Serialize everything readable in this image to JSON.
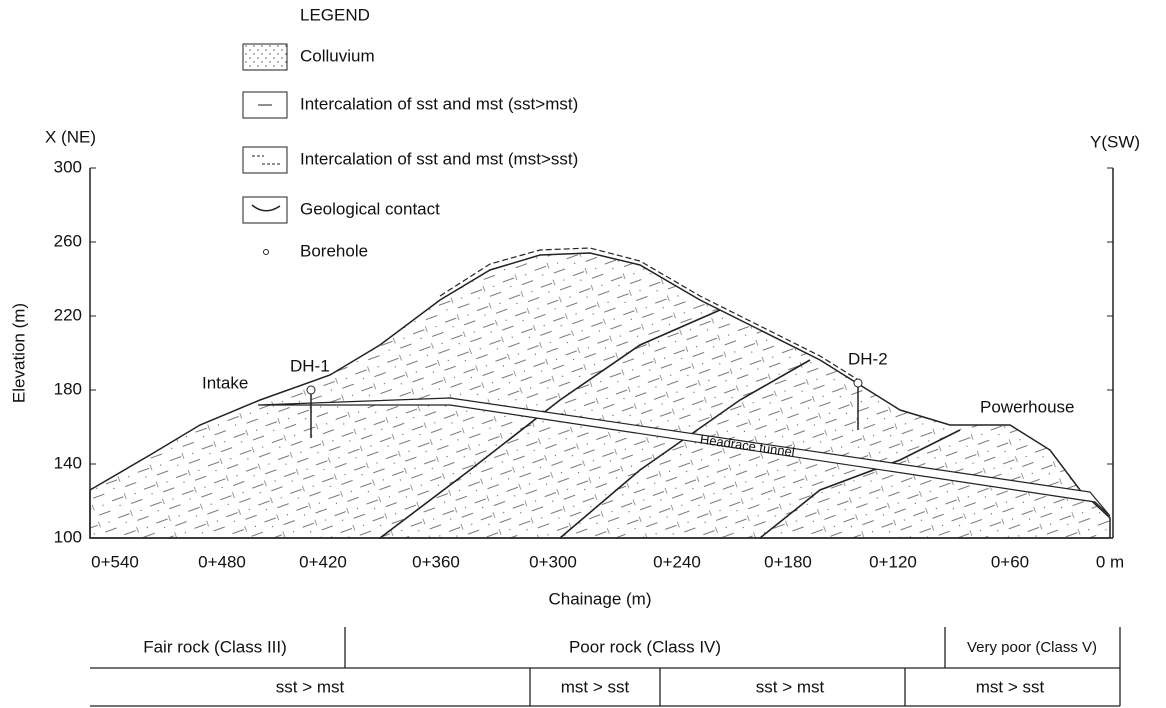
{
  "legend": {
    "title": "LEGEND",
    "items": [
      "Colluvium",
      "Intercalation of sst and mst (sst>mst)",
      "Intercalation of sst and mst (mst>sst)",
      "Geological contact",
      "Borehole"
    ]
  },
  "axes": {
    "left_label": "X (NE)",
    "right_label": "Y(SW)",
    "y_title": "Elevation (m)",
    "x_title": "Chainage (m)",
    "y_ticks": [
      "300",
      "260",
      "220",
      "180",
      "140",
      "100"
    ],
    "x_ticks": [
      "0+540",
      "0+480",
      "0+420",
      "0+360",
      "0+300",
      "0+240",
      "0+180",
      "0+120",
      "0+60",
      "0 m"
    ]
  },
  "annotations": {
    "intake": "Intake",
    "borehole_1": "DH-1",
    "borehole_2": "DH-2",
    "powerhouse": "Powerhouse",
    "tunnel": "Headrace tunnel"
  },
  "table": {
    "rows": [
      [
        "Fair rock (Class III)",
        "Poor rock (Class IV)",
        "Very poor (Class V)"
      ],
      [
        "sst > mst",
        "mst > sst",
        "sst > mst",
        "mst > sst"
      ]
    ]
  }
}
